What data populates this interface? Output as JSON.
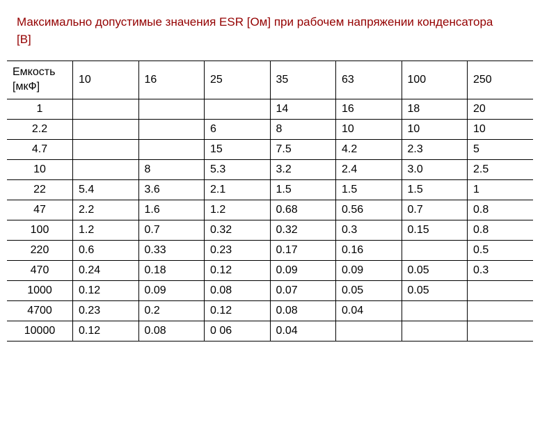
{
  "title": "Максимально допустимые значения ESR [Ом] при рабочем напряжении конденсатора [В]",
  "table": {
    "row_header_label": "Емкость\n[мкФ]",
    "columns": [
      "10",
      "16",
      "25",
      "35",
      "63",
      "100",
      "250"
    ],
    "rows": [
      {
        "cap": "1",
        "vals": [
          "",
          "",
          "",
          "14",
          "16",
          "18",
          "20"
        ]
      },
      {
        "cap": "2.2",
        "vals": [
          "",
          "",
          "6",
          "8",
          "10",
          "10",
          "10"
        ]
      },
      {
        "cap": "4.7",
        "vals": [
          "",
          "",
          "15",
          "7.5",
          "4.2",
          "2.3",
          "5"
        ]
      },
      {
        "cap": "10",
        "vals": [
          "",
          "8",
          "5.3",
          "3.2",
          "2.4",
          "3.0",
          "2.5"
        ]
      },
      {
        "cap": "22",
        "vals": [
          "5.4",
          "3.6",
          "2.1",
          "1.5",
          "1.5",
          "1.5",
          "1"
        ]
      },
      {
        "cap": "47",
        "vals": [
          "2.2",
          "1.6",
          "1.2",
          "0.68",
          "0.56",
          "0.7",
          "0.8"
        ]
      },
      {
        "cap": "100",
        "vals": [
          "1.2",
          "0.7",
          "0.32",
          "0.32",
          "0.3",
          "0.15",
          "0.8"
        ]
      },
      {
        "cap": "220",
        "vals": [
          "0.6",
          "0.33",
          "0.23",
          "0.17",
          "0.16",
          "",
          "0.5"
        ]
      },
      {
        "cap": "470",
        "vals": [
          "0.24",
          "0.18",
          "0.12",
          "0.09",
          "0.09",
          "0.05",
          "0.3"
        ]
      },
      {
        "cap": "1000",
        "vals": [
          "0.12",
          "0.09",
          "0.08",
          "0.07",
          "0.05",
          "0.05",
          ""
        ]
      },
      {
        "cap": "4700",
        "vals": [
          "0.23",
          "0.2",
          "0.12",
          "0.08",
          "0.04",
          "",
          ""
        ]
      },
      {
        "cap": "10000",
        "vals": [
          "0.12",
          "0.08",
          "0 06",
          "0.04",
          "",
          "",
          ""
        ]
      }
    ],
    "colors": {
      "title": "#940000",
      "text": "#000000",
      "border": "#000000",
      "background": "#ffffff"
    },
    "font": {
      "title_size_pt": 13,
      "cell_size_pt": 12,
      "family": "Verdana"
    }
  }
}
